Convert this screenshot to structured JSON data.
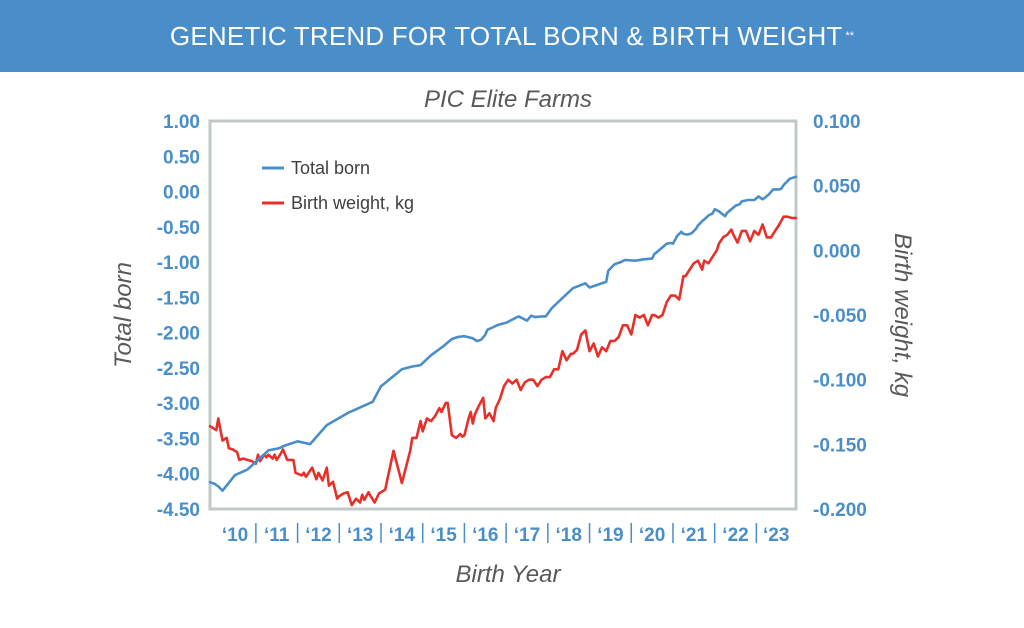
{
  "header": {
    "title": "GENETIC TREND FOR TOTAL BORN & BIRTH WEIGHT",
    "title_mark": "**"
  },
  "colors": {
    "banner": "#4a8ec9",
    "tick_labels": "#4a8ec9",
    "total_born_line": "#4a8ec9",
    "birth_weight_line": "#e8302a",
    "axis": "#bfc9c6"
  },
  "chart_data": {
    "type": "line",
    "title": "PIC Elite Farms",
    "xlabel": "Birth Year",
    "ylabel_left": "Total born",
    "ylabel_right": "Birth weight, kg",
    "x_range": [
      2009.9,
      2023.95
    ],
    "ylim_left": [
      -4.5,
      1.0
    ],
    "ylim_right": [
      -0.2,
      0.1
    ],
    "yticks_left": [
      "1.00",
      "0.50",
      "0.00",
      "-0.50",
      "-1.00",
      "-1.50",
      "-2.00",
      "-2.50",
      "-3.00",
      "-3.50",
      "-4.00",
      "-4.50"
    ],
    "yticks_right": [
      "0.100",
      "0.050",
      "0.000",
      "-0.050",
      "-0.100",
      "-0.150",
      "-0.200"
    ],
    "x_tick_labels": [
      "'10",
      "'11",
      "'12",
      "'13",
      "'14",
      "'15",
      "'16",
      "'17",
      "'18",
      "'19",
      "'20",
      "'21",
      "'22",
      "'23"
    ],
    "legend": [
      {
        "name": "Total born"
      },
      {
        "name": "Birth weight, kg"
      }
    ],
    "series": [
      {
        "name": "Total born",
        "axis": "left",
        "x": [
          2009.9,
          2010.0,
          2010.1,
          2010.2,
          2010.5,
          2010.65,
          2010.8,
          2011.3,
          2011.55,
          2011.7,
          2012.0,
          2012.3,
          2012.7,
          2013.2,
          2013.8,
          2014.0,
          2014.5,
          2014.75,
          2014.95,
          2015.2,
          2015.5,
          2015.7,
          2015.85,
          2016.0,
          2016.2,
          2016.3,
          2016.4,
          2016.5,
          2016.55,
          2016.7,
          2016.8,
          2017.0,
          2017.3,
          2017.5,
          2017.6,
          2017.7,
          2017.85,
          2017.95,
          2018.1,
          2018.6,
          2018.9,
          2019.0,
          2019.15,
          2019.4,
          2019.45,
          2019.6,
          2019.75,
          2019.85,
          2020.1,
          2020.3,
          2020.5,
          2020.55,
          2020.65,
          2020.85,
          2020.95,
          2021.0,
          2021.1,
          2021.2,
          2021.25,
          2021.35,
          2021.45,
          2021.55,
          2021.6,
          2021.7,
          2021.8,
          2021.85,
          2021.95,
          2022.0,
          2022.1,
          2022.25,
          2022.3,
          2022.4,
          2022.5,
          2022.6,
          2022.65,
          2022.8,
          2022.85,
          2022.95,
          2023.05,
          2023.15,
          2023.2,
          2023.3,
          2023.4,
          2023.55,
          2023.6,
          2023.65,
          2023.7,
          2023.8,
          2023.95
        ],
        "values": [
          -4.12,
          -4.14,
          -4.18,
          -4.24,
          -4.02,
          -3.98,
          -3.94,
          -3.67,
          -3.64,
          -3.6,
          -3.54,
          -3.58,
          -3.31,
          -3.14,
          -2.98,
          -2.76,
          -2.52,
          -2.48,
          -2.46,
          -2.32,
          -2.19,
          -2.09,
          -2.06,
          -2.05,
          -2.08,
          -2.12,
          -2.1,
          -2.03,
          -1.96,
          -1.92,
          -1.89,
          -1.86,
          -1.77,
          -1.83,
          -1.76,
          -1.78,
          -1.77,
          -1.77,
          -1.65,
          -1.37,
          -1.3,
          -1.36,
          -1.33,
          -1.28,
          -1.12,
          -1.03,
          -1.0,
          -0.97,
          -0.98,
          -0.96,
          -0.95,
          -0.89,
          -0.84,
          -0.74,
          -0.73,
          -0.74,
          -0.63,
          -0.57,
          -0.6,
          -0.61,
          -0.59,
          -0.53,
          -0.48,
          -0.42,
          -0.37,
          -0.34,
          -0.31,
          -0.25,
          -0.28,
          -0.35,
          -0.3,
          -0.25,
          -0.2,
          -0.18,
          -0.14,
          -0.12,
          -0.12,
          -0.12,
          -0.07,
          -0.11,
          -0.09,
          -0.04,
          0.03,
          0.03,
          0.04,
          0.09,
          0.12,
          0.18,
          0.21
        ]
      },
      {
        "name": "Birth weight, kg",
        "axis": "right",
        "x": [
          2009.9,
          2010.0,
          2010.05,
          2010.1,
          2010.2,
          2010.3,
          2010.35,
          2010.45,
          2010.55,
          2010.6,
          2010.7,
          2010.8,
          2010.9,
          2011.0,
          2011.05,
          2011.1,
          2011.2,
          2011.25,
          2011.3,
          2011.4,
          2011.45,
          2011.5,
          2011.6,
          2011.65,
          2011.75,
          2011.9,
          2011.95,
          2012.1,
          2012.15,
          2012.2,
          2012.35,
          2012.45,
          2012.5,
          2012.6,
          2012.7,
          2012.75,
          2012.85,
          2012.95,
          2013.0,
          2013.1,
          2013.2,
          2013.3,
          2013.4,
          2013.5,
          2013.55,
          2013.6,
          2013.7,
          2013.75,
          2013.85,
          2013.95,
          2014.1,
          2014.3,
          2014.5,
          2014.7,
          2014.75,
          2014.85,
          2014.95,
          2015.0,
          2015.1,
          2015.2,
          2015.3,
          2015.4,
          2015.45,
          2015.55,
          2015.6,
          2015.7,
          2015.8,
          2015.9,
          2015.95,
          2016.0,
          2016.1,
          2016.15,
          2016.2,
          2016.25,
          2016.35,
          2016.45,
          2016.5,
          2016.6,
          2016.7,
          2016.75,
          2016.85,
          2016.95,
          2017.05,
          2017.15,
          2017.25,
          2017.35,
          2017.45,
          2017.55,
          2017.65,
          2017.75,
          2017.85,
          2017.95,
          2018.05,
          2018.15,
          2018.25,
          2018.35,
          2018.45,
          2018.55,
          2018.6,
          2018.7,
          2018.8,
          2018.9,
          2019.0,
          2019.1,
          2019.2,
          2019.3,
          2019.4,
          2019.5,
          2019.6,
          2019.7,
          2019.8,
          2019.9,
          2020.0,
          2020.1,
          2020.2,
          2020.3,
          2020.4,
          2020.5,
          2020.55,
          2020.65,
          2020.75,
          2020.85,
          2020.95,
          2021.05,
          2021.15,
          2021.25,
          2021.3,
          2021.4,
          2021.5,
          2021.6,
          2021.7,
          2021.75,
          2021.85,
          2021.95,
          2022.05,
          2022.1,
          2022.2,
          2022.3,
          2022.4,
          2022.45,
          2022.55,
          2022.65,
          2022.75,
          2022.85,
          2022.95,
          2023.05,
          2023.15,
          2023.25,
          2023.35,
          2023.45,
          2023.55,
          2023.65,
          2023.75,
          2023.85,
          2023.95
        ],
        "values": [
          -0.136,
          -0.138,
          -0.139,
          -0.13,
          -0.147,
          -0.145,
          -0.153,
          -0.154,
          -0.156,
          -0.162,
          -0.161,
          -0.162,
          -0.163,
          -0.165,
          -0.158,
          -0.163,
          -0.158,
          -0.16,
          -0.158,
          -0.161,
          -0.158,
          -0.162,
          -0.157,
          -0.154,
          -0.162,
          -0.162,
          -0.172,
          -0.174,
          -0.172,
          -0.175,
          -0.168,
          -0.177,
          -0.172,
          -0.178,
          -0.168,
          -0.182,
          -0.179,
          -0.192,
          -0.19,
          -0.188,
          -0.187,
          -0.197,
          -0.192,
          -0.195,
          -0.189,
          -0.193,
          -0.187,
          -0.19,
          -0.195,
          -0.188,
          -0.185,
          -0.155,
          -0.18,
          -0.155,
          -0.145,
          -0.145,
          -0.132,
          -0.14,
          -0.13,
          -0.132,
          -0.128,
          -0.122,
          -0.125,
          -0.118,
          -0.118,
          -0.143,
          -0.145,
          -0.142,
          -0.144,
          -0.143,
          -0.13,
          -0.125,
          -0.134,
          -0.127,
          -0.12,
          -0.114,
          -0.13,
          -0.126,
          -0.132,
          -0.122,
          -0.115,
          -0.105,
          -0.1,
          -0.103,
          -0.1,
          -0.108,
          -0.102,
          -0.1,
          -0.1,
          -0.105,
          -0.1,
          -0.098,
          -0.098,
          -0.092,
          -0.092,
          -0.078,
          -0.085,
          -0.08,
          -0.08,
          -0.077,
          -0.065,
          -0.062,
          -0.078,
          -0.072,
          -0.082,
          -0.075,
          -0.078,
          -0.07,
          -0.07,
          -0.067,
          -0.058,
          -0.058,
          -0.065,
          -0.05,
          -0.052,
          -0.05,
          -0.058,
          -0.05,
          -0.05,
          -0.052,
          -0.05,
          -0.04,
          -0.035,
          -0.035,
          -0.038,
          -0.02,
          -0.02,
          -0.015,
          -0.01,
          -0.008,
          -0.015,
          -0.008,
          -0.01,
          -0.005,
          0.0,
          0.005,
          0.01,
          0.012,
          0.016,
          0.012,
          0.006,
          0.015,
          0.015,
          0.007,
          0.015,
          0.012,
          0.02,
          0.01,
          0.01,
          0.015,
          0.02,
          0.026,
          0.026,
          0.025,
          0.025
        ]
      }
    ]
  }
}
